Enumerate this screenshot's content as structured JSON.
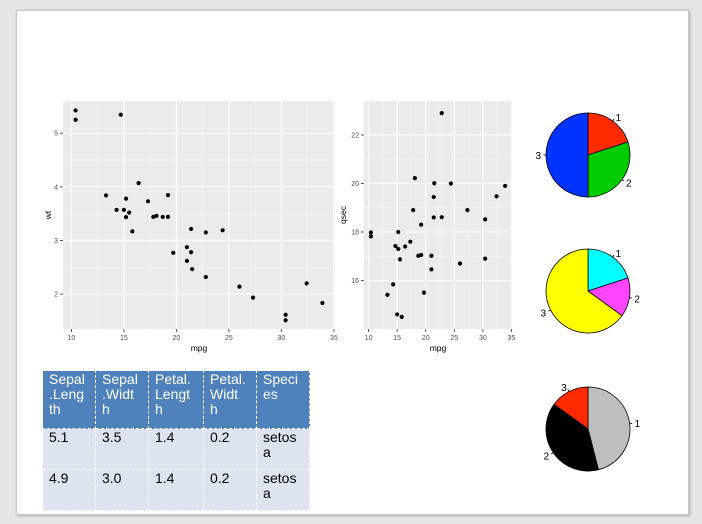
{
  "colors": {
    "panel": "#ebebeb",
    "grid_major": "#ffffff",
    "grid_minor": "#f5f5f5",
    "point": "#000000",
    "table_header": "#4f81bd",
    "table_cell": "#dde4ef"
  },
  "chart_data": [
    {
      "type": "scatter",
      "xlabel": "mpg",
      "ylabel": "wt",
      "xlim": [
        9.2,
        35.1
      ],
      "ylim": [
        1.35,
        5.6
      ],
      "xticks": [
        "10",
        "15",
        "20",
        "25",
        "30",
        "35"
      ],
      "yticks": [
        "2",
        "3",
        "4",
        "5"
      ],
      "x": [
        21.0,
        21.0,
        22.8,
        21.4,
        18.7,
        18.1,
        14.3,
        24.4,
        22.8,
        19.2,
        17.8,
        16.4,
        17.3,
        15.2,
        10.4,
        10.4,
        14.7,
        32.4,
        30.4,
        33.9,
        21.5,
        15.5,
        15.2,
        13.3,
        19.2,
        27.3,
        26.0,
        30.4,
        15.8,
        19.7,
        15.0,
        21.4
      ],
      "y": [
        2.62,
        2.875,
        2.32,
        3.215,
        3.44,
        3.46,
        3.57,
        3.19,
        3.15,
        3.44,
        3.44,
        4.07,
        3.73,
        3.78,
        5.25,
        5.424,
        5.345,
        2.2,
        1.615,
        1.835,
        2.465,
        3.52,
        3.435,
        3.84,
        3.845,
        1.935,
        2.14,
        1.513,
        3.17,
        2.77,
        3.57,
        2.78
      ]
    },
    {
      "type": "scatter",
      "xlabel": "mpg",
      "ylabel": "qsec",
      "xlim": [
        9.2,
        35.1
      ],
      "ylim": [
        14.0,
        23.4
      ],
      "xticks": [
        "10",
        "15",
        "20",
        "25",
        "30",
        "35"
      ],
      "yticks": [
        "16",
        "18",
        "20",
        "22"
      ],
      "x": [
        21.0,
        21.0,
        22.8,
        21.4,
        18.7,
        18.1,
        14.3,
        24.4,
        22.8,
        19.2,
        17.8,
        16.4,
        17.3,
        15.2,
        10.4,
        10.4,
        14.7,
        32.4,
        30.4,
        33.9,
        21.5,
        15.5,
        15.2,
        13.3,
        19.2,
        27.3,
        26.0,
        30.4,
        15.8,
        19.7,
        15.0,
        21.4
      ],
      "y": [
        16.46,
        17.02,
        18.61,
        19.44,
        17.02,
        20.22,
        15.84,
        20.0,
        22.9,
        18.3,
        18.9,
        17.4,
        17.6,
        18.0,
        17.98,
        17.82,
        17.42,
        19.47,
        18.52,
        19.9,
        20.01,
        16.87,
        17.3,
        15.41,
        17.05,
        18.9,
        16.7,
        16.9,
        14.5,
        15.5,
        14.6,
        18.6
      ]
    },
    {
      "type": "pie",
      "labels": [
        "1",
        "2",
        "3"
      ],
      "values": [
        20,
        30,
        50
      ],
      "colors": [
        "#ff2a00",
        "#00cc00",
        "#0033ff"
      ]
    },
    {
      "type": "pie",
      "labels": [
        "1",
        "2",
        "3"
      ],
      "values": [
        20,
        15,
        65
      ],
      "colors": [
        "#00ffff",
        "#ff44ff",
        "#ffff00"
      ]
    },
    {
      "type": "pie",
      "labels": [
        "1",
        "2",
        "3"
      ],
      "values": [
        46,
        39,
        15
      ],
      "colors": [
        "#bebebe",
        "#000000",
        "#ff2a00"
      ]
    },
    {
      "type": "table",
      "columns": [
        "Sepal.Length",
        "Sepal.Width",
        "Petal.Length",
        "Petal.Width",
        "Species"
      ],
      "columns_wrapped": [
        [
          "Sepal",
          ".Leng",
          "th"
        ],
        [
          "Sepal",
          ".Widt",
          "h"
        ],
        [
          "Petal.",
          "Lengt",
          "h"
        ],
        [
          "Petal.",
          "Widt",
          "h"
        ],
        [
          "Speci",
          "es"
        ]
      ],
      "rows": [
        [
          "5.1",
          "3.5",
          "1.4",
          "0.2",
          "setosa"
        ],
        [
          "4.9",
          "3.0",
          "1.4",
          "0.2",
          "setosa"
        ]
      ],
      "rows_wrapped": [
        [
          [
            "5.1"
          ],
          [
            "3.5"
          ],
          [
            "1.4"
          ],
          [
            "0.2"
          ],
          [
            "setos",
            "a"
          ]
        ],
        [
          [
            "4.9"
          ],
          [
            "3.0"
          ],
          [
            "1.4"
          ],
          [
            "0.2"
          ],
          [
            "setos",
            "a"
          ]
        ]
      ]
    }
  ]
}
